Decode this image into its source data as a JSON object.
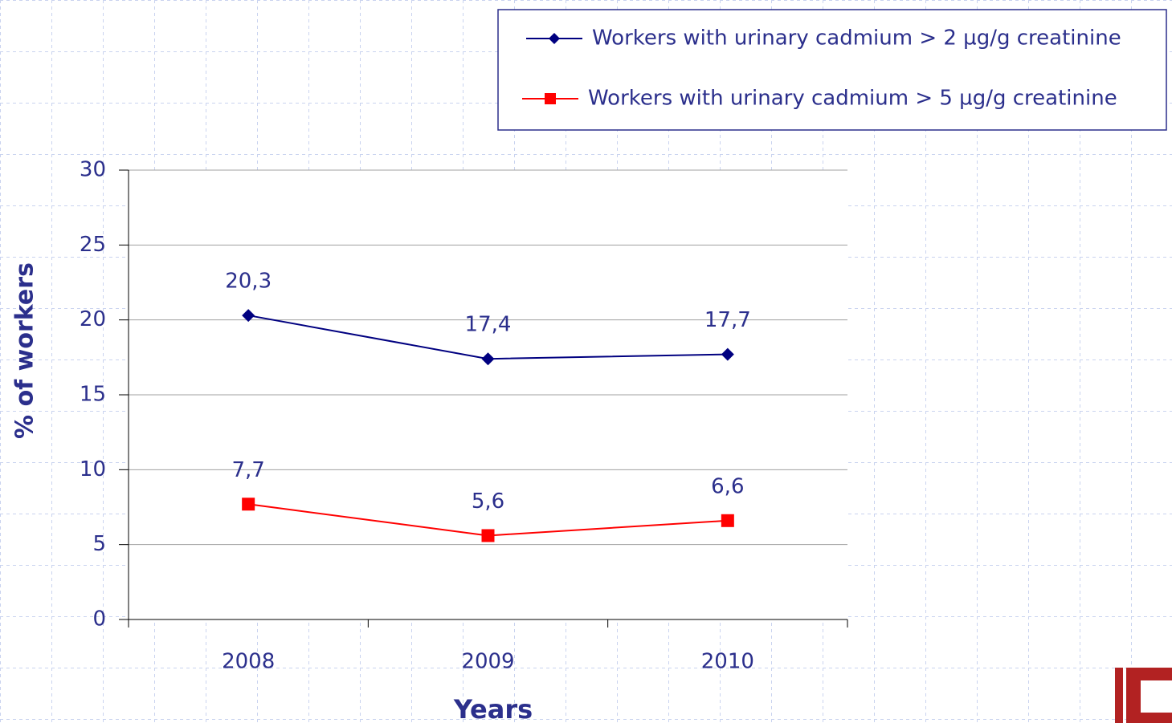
{
  "chart_data": {
    "type": "line",
    "categories": [
      "2008",
      "2009",
      "2010"
    ],
    "series": [
      {
        "name": "Workers with urinary cadmium > 2 µg/g creatinine",
        "color": "#000080",
        "marker": "diamond",
        "values": [
          20.3,
          17.4,
          17.7
        ],
        "value_labels": [
          "20,3",
          "17,4",
          "17,7"
        ]
      },
      {
        "name": "Workers with urinary cadmium > 5 µg/g creatinine",
        "color": "#ff0000",
        "marker": "square",
        "values": [
          7.7,
          5.6,
          6.6
        ],
        "value_labels": [
          "7,7",
          "5,6",
          "6,6"
        ]
      }
    ],
    "ylim": [
      0,
      30
    ],
    "yticks": [
      0,
      5,
      10,
      15,
      20,
      25,
      30
    ],
    "grid": true,
    "xlabel": "Years",
    "ylabel": "% of workers",
    "legend": "top right"
  }
}
